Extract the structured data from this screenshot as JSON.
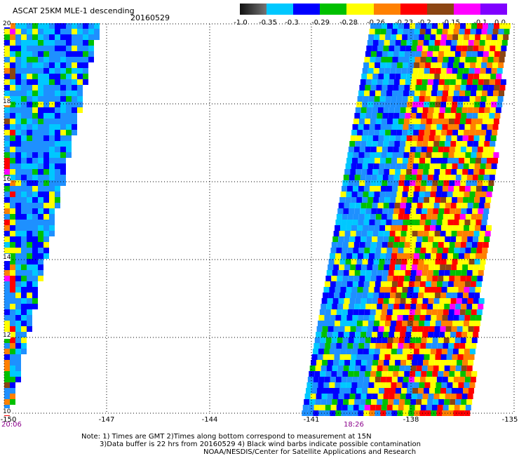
{
  "header": {
    "title": "ASCAT 25KM MLE-1 descending",
    "date": "20160529"
  },
  "colorbar": {
    "ticks": [
      "-1.0",
      "-0.35",
      "-0.3",
      "-0.29",
      "-0.28",
      "-0.26",
      "-0.23",
      "-0.2",
      "-0.15",
      "-0.1",
      "0.0"
    ],
    "colors": [
      "#000000",
      "#00c8ff",
      "#0000ff",
      "#00c000",
      "#ffff00",
      "#ff8000",
      "#ff0000",
      "#8b4513",
      "#ff00ff",
      "#8000ff"
    ]
  },
  "axes": {
    "lat_ticks": [
      "20",
      "18",
      "16",
      "14",
      "12",
      "10"
    ],
    "lon_ticks": [
      "-150",
      "-147",
      "-144",
      "-141",
      "-138",
      "-135"
    ]
  },
  "times": {
    "left": "20:06",
    "right": "18:26"
  },
  "notes": {
    "line1": "Note: 1) Times are GMT 2)Times along bottom correspond to measurement at 15N",
    "line2": "3)Data buffer is 22 hrs from 20160529 4) Black wind barbs indicate possible contamination",
    "line3": "NOAA/NESDIS/Center for Satellite Applications and Research"
  },
  "map": {
    "lat_range": [
      10,
      20
    ],
    "lon_range": [
      -150,
      -135
    ],
    "grid": "dotted"
  }
}
